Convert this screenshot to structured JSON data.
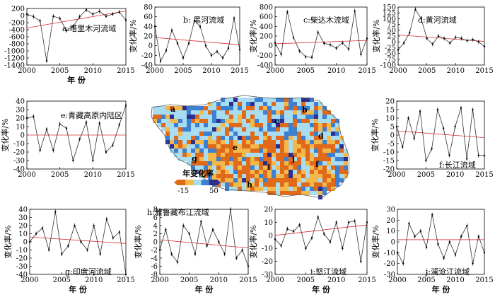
{
  "figure": {
    "map_legend_title": "年变化率",
    "map_legend_min": "-15",
    "map_legend_max": "50",
    "map_legend_colors": [
      "#e06a1a",
      "#f2b84a",
      "#a8dcf0",
      "#3d7fd0",
      "#2b2f8f"
    ],
    "map_region_letters": [
      "a",
      "b",
      "c",
      "d",
      "e",
      "f",
      "g",
      "h",
      "i",
      "j"
    ],
    "series_color": "#333333",
    "trend_color": "#e03030"
  },
  "chart_data": [
    {
      "type": "line",
      "title": "a:塔里木河流域",
      "xlabel": "年 份",
      "ylabel": "",
      "xlim": [
        2000,
        2015
      ],
      "ylim": [
        -1400,
        200
      ],
      "xticks": [
        2000,
        2005,
        2010,
        2015
      ],
      "yticks": [
        -1400,
        -1200,
        -1000,
        -800,
        -600,
        -400,
        -200,
        0,
        200
      ],
      "x": [
        2000,
        2001,
        2002,
        2003,
        2004,
        2005,
        2006,
        2007,
        2008,
        2009,
        2010,
        2011,
        2012,
        2013,
        2014,
        2015
      ],
      "values": [
        40,
        -30,
        -150,
        -1280,
        -20,
        -80,
        -430,
        -310,
        -30,
        160,
        40,
        120,
        -20,
        40,
        100,
        -130
      ],
      "trend": [
        -350,
        130
      ],
      "grid": false,
      "error_bars": true
    },
    {
      "type": "line",
      "title": "b: 黑河流域",
      "xlabel": "",
      "ylabel": "变化率/%",
      "xlim": [
        2000,
        2015
      ],
      "ylim": [
        -40,
        80
      ],
      "xticks": [
        2000,
        2005,
        2010,
        2015
      ],
      "yticks": [
        -40,
        -20,
        0,
        20,
        40,
        60,
        80
      ],
      "x": [
        2000,
        2001,
        2002,
        2003,
        2004,
        2005,
        2006,
        2007,
        2008,
        2009,
        2010,
        2011,
        2012,
        2013,
        2014,
        2015
      ],
      "values": [
        40,
        -32,
        -10,
        32,
        5,
        -25,
        5,
        52,
        40,
        0,
        -20,
        -12,
        -25,
        -5,
        57,
        -8
      ],
      "trend": [
        17,
        2
      ],
      "grid": false,
      "error_bars": true
    },
    {
      "type": "line",
      "title": "c:柴达木流域",
      "xlabel": "",
      "ylabel": "变化率/%",
      "xlim": [
        2000,
        2015
      ],
      "ylim": [
        -400,
        800
      ],
      "xticks": [
        2000,
        2005,
        2010,
        2015
      ],
      "yticks": [
        -400,
        -200,
        0,
        200,
        400,
        600,
        800
      ],
      "x": [
        2000,
        2001,
        2002,
        2003,
        2004,
        2005,
        2006,
        2007,
        2008,
        2009,
        2010,
        2011,
        2012,
        2013,
        2014,
        2015
      ],
      "values": [
        60,
        -180,
        700,
        170,
        -110,
        -230,
        -240,
        280,
        50,
        20,
        -50,
        60,
        -70,
        720,
        -180,
        150
      ],
      "trend": [
        40,
        110
      ],
      "grid": false,
      "error_bars": true
    },
    {
      "type": "line",
      "title": "d:黄河流域",
      "xlabel": "",
      "ylabel": "变化率/%",
      "xlim": [
        2000,
        2015
      ],
      "ylim": [
        -100,
        150
      ],
      "xticks": [
        2000,
        2005,
        2010,
        2015
      ],
      "yticks": [
        -100,
        -75,
        -50,
        -25,
        0,
        25,
        50,
        75,
        100,
        125,
        150
      ],
      "x": [
        2000,
        2001,
        2002,
        2003,
        2004,
        2005,
        2006,
        2007,
        2008,
        2009,
        2010,
        2011,
        2012,
        2013,
        2014,
        2015
      ],
      "values": [
        -35,
        -5,
        40,
        140,
        100,
        15,
        -10,
        25,
        15,
        -5,
        20,
        15,
        5,
        10,
        0,
        -20
      ],
      "trend": [
        30,
        2
      ],
      "grid": false,
      "error_bars": true
    },
    {
      "type": "line",
      "title": "e:青藏高原内陆区",
      "xlabel": "",
      "ylabel": "变化率/%",
      "xlim": [
        2000,
        2015
      ],
      "ylim": [
        -40,
        40
      ],
      "xticks": [
        2000,
        2005,
        2010,
        2015
      ],
      "yticks": [
        -40,
        -30,
        -20,
        -10,
        0,
        10,
        20,
        30,
        40
      ],
      "x": [
        2000,
        2001,
        2002,
        2003,
        2004,
        2005,
        2006,
        2007,
        2008,
        2009,
        2010,
        2011,
        2012,
        2013,
        2014,
        2015
      ],
      "values": [
        20,
        22,
        -18,
        7,
        -18,
        13,
        8,
        -30,
        -5,
        15,
        -30,
        14,
        -20,
        -12,
        12,
        35
      ],
      "trend": [
        0,
        0
      ],
      "grid": false,
      "error_bars": true
    },
    {
      "type": "line",
      "title": "f:长江流域",
      "xlabel": "",
      "ylabel": "变化率/%",
      "xlim": [
        2000,
        2015
      ],
      "ylim": [
        -20,
        20
      ],
      "xticks": [
        2000,
        2005,
        2010,
        2015
      ],
      "yticks": [
        -20,
        -15,
        -10,
        -5,
        0,
        5,
        10,
        15,
        20
      ],
      "x": [
        2000,
        2001,
        2002,
        2003,
        2004,
        2005,
        2006,
        2007,
        2008,
        2009,
        2010,
        2011,
        2012,
        2013,
        2014,
        2015
      ],
      "values": [
        5,
        -7,
        10,
        -2,
        14,
        -15,
        -8,
        15,
        4,
        -12,
        5,
        16,
        -14,
        15,
        -12,
        -12
      ],
      "trend": [
        2.5,
        -1.5
      ],
      "grid": false,
      "error_bars": true
    },
    {
      "type": "line",
      "title": "g:印度河流域",
      "xlabel": "年 份",
      "ylabel": "变化率/%",
      "xlim": [
        2000,
        2015
      ],
      "ylim": [
        -40,
        40
      ],
      "xticks": [
        2000,
        2005,
        2010,
        2015
      ],
      "yticks": [
        -40,
        -30,
        -20,
        -10,
        0,
        10,
        20,
        30,
        40
      ],
      "x": [
        2000,
        2001,
        2002,
        2003,
        2004,
        2005,
        2006,
        2007,
        2008,
        2009,
        2010,
        2011,
        2012,
        2013,
        2014,
        2015
      ],
      "values": [
        0,
        10,
        17,
        -10,
        37,
        -15,
        -5,
        20,
        0,
        -10,
        20,
        -15,
        28,
        5,
        12,
        -40
      ],
      "trend": [
        6,
        -2
      ],
      "grid": false,
      "error_bars": true
    },
    {
      "type": "line",
      "title": "h:雅鲁藏布江流域",
      "xlabel": "年 份",
      "ylabel": "变化率/%",
      "xlim": [
        2000,
        2015
      ],
      "ylim": [
        -8,
        8
      ],
      "xticks": [
        2000,
        2005,
        2010,
        2015
      ],
      "yticks": [
        -8,
        -6,
        -4,
        -2,
        0,
        2,
        4,
        6,
        8
      ],
      "x": [
        2000,
        2001,
        2002,
        2003,
        2004,
        2005,
        2006,
        2007,
        2008,
        2009,
        2010,
        2011,
        2012,
        2013,
        2014,
        2015
      ],
      "values": [
        -2,
        3,
        -3,
        -5,
        4,
        2,
        -3,
        5,
        -1,
        3,
        0,
        -3,
        8,
        -4,
        -2,
        -6
      ],
      "trend": [
        0.5,
        -1.5
      ],
      "grid": false,
      "error_bars": true
    },
    {
      "type": "line",
      "title": "i:怒江流域",
      "xlabel": "年 份",
      "ylabel": "变化率/%",
      "xlim": [
        2000,
        2015
      ],
      "ylim": [
        -30,
        20
      ],
      "xticks": [
        2000,
        2005,
        2010,
        2015
      ],
      "yticks": [
        -30,
        -20,
        -10,
        0,
        10,
        20
      ],
      "x": [
        2000,
        2001,
        2002,
        2003,
        2004,
        2005,
        2006,
        2007,
        2008,
        2009,
        2010,
        2011,
        2012,
        2013,
        2014,
        2015
      ],
      "values": [
        -3,
        -8,
        5,
        3,
        8,
        -10,
        -2,
        14,
        1,
        -5,
        10,
        -10,
        10,
        11,
        -20,
        10
      ],
      "trend": [
        0,
        8
      ],
      "grid": false,
      "error_bars": true
    },
    {
      "type": "line",
      "title": "j:澜沧江流域",
      "xlabel": "年 份",
      "ylabel": "变化率/%",
      "xlim": [
        2000,
        2015
      ],
      "ylim": [
        -30,
        30
      ],
      "xticks": [
        2000,
        2005,
        2010,
        2015
      ],
      "yticks": [
        -30,
        -20,
        -10,
        0,
        10,
        20,
        30
      ],
      "x": [
        2000,
        2001,
        2002,
        2003,
        2004,
        2005,
        2006,
        2007,
        2008,
        2009,
        2010,
        2011,
        2012,
        2013,
        2014,
        2015
      ],
      "values": [
        -10,
        -20,
        17,
        5,
        10,
        -5,
        25,
        -2,
        -15,
        0,
        -12,
        5,
        15,
        -20,
        5,
        -10
      ],
      "trend": [
        2,
        2
      ],
      "grid": false,
      "error_bars": true
    }
  ]
}
